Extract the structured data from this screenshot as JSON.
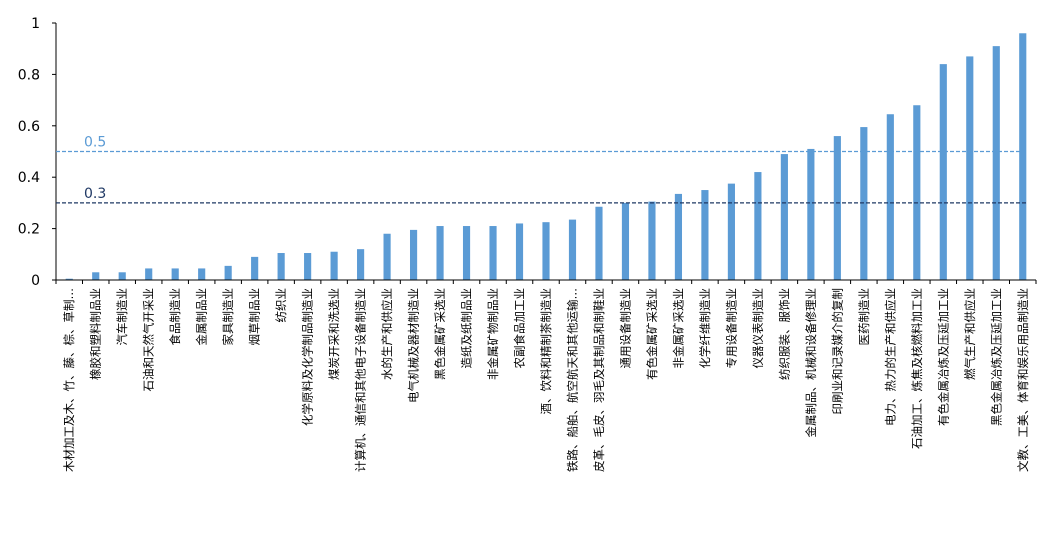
{
  "chart_data": {
    "type": "bar",
    "title": "",
    "xlabel": "",
    "ylabel": "",
    "ylim": [
      0,
      1
    ],
    "yticks": [
      "0",
      "0.2",
      "0.4",
      "0.6",
      "0.8",
      "1"
    ],
    "grid": false,
    "legend": "none",
    "bar_color": "#5b9bd5",
    "categories": [
      "木材加工及木、竹、藤、棕、草制…",
      "橡胶和塑料制品业",
      "汽车制造业",
      "石油和天然气开采业",
      "食品制造业",
      "金属制品业",
      "家具制造业",
      "烟草制品业",
      "纺织业",
      "化学原料及化学制品制造业",
      "煤炭开采和洗选业",
      "计算机、通信和其他电子设备制造业",
      "水的生产和供应业",
      "电气机械及器材制造业",
      "黑色金属矿采选业",
      "造纸及纸制品业",
      "非金属矿物制品业",
      "农副食品加工业",
      "酒、饮料和精制茶制造业",
      "铁路、船舶、航空航天和其他运输…",
      "皮革、毛皮、羽毛及其制品和制鞋业",
      "通用设备制造业",
      "有色金属矿采选业",
      "非金属矿采选业",
      "化学纤维制造业",
      "专用设备制造业",
      "仪器仪表制造业",
      "纺织服装、服饰业",
      "金属制品、机械和设备修理业",
      "印刷业和记录媒介的复制",
      "医药制造业",
      "电力、热力的生产和供应业",
      "石油加工、炼焦及核燃料加工业",
      "有色金属冶炼及压延加工业",
      "燃气生产和供应业",
      "黑色金属冶炼及压延加工业",
      "文教、工美、体育和娱乐用品制造业"
    ],
    "values": [
      0.005,
      0.03,
      0.03,
      0.045,
      0.045,
      0.045,
      0.055,
      0.09,
      0.105,
      0.105,
      0.11,
      0.12,
      0.18,
      0.195,
      0.21,
      0.21,
      0.21,
      0.22,
      0.225,
      0.235,
      0.285,
      0.3,
      0.305,
      0.335,
      0.35,
      0.375,
      0.42,
      0.49,
      0.51,
      0.56,
      0.595,
      0.645,
      0.68,
      0.84,
      0.87,
      0.91,
      0.96
    ],
    "reference_lines": [
      {
        "label": "0.5",
        "value": 0.5,
        "color": "#5b9bd5"
      },
      {
        "label": "0.3",
        "value": 0.3,
        "color": "#1f3864"
      }
    ]
  }
}
